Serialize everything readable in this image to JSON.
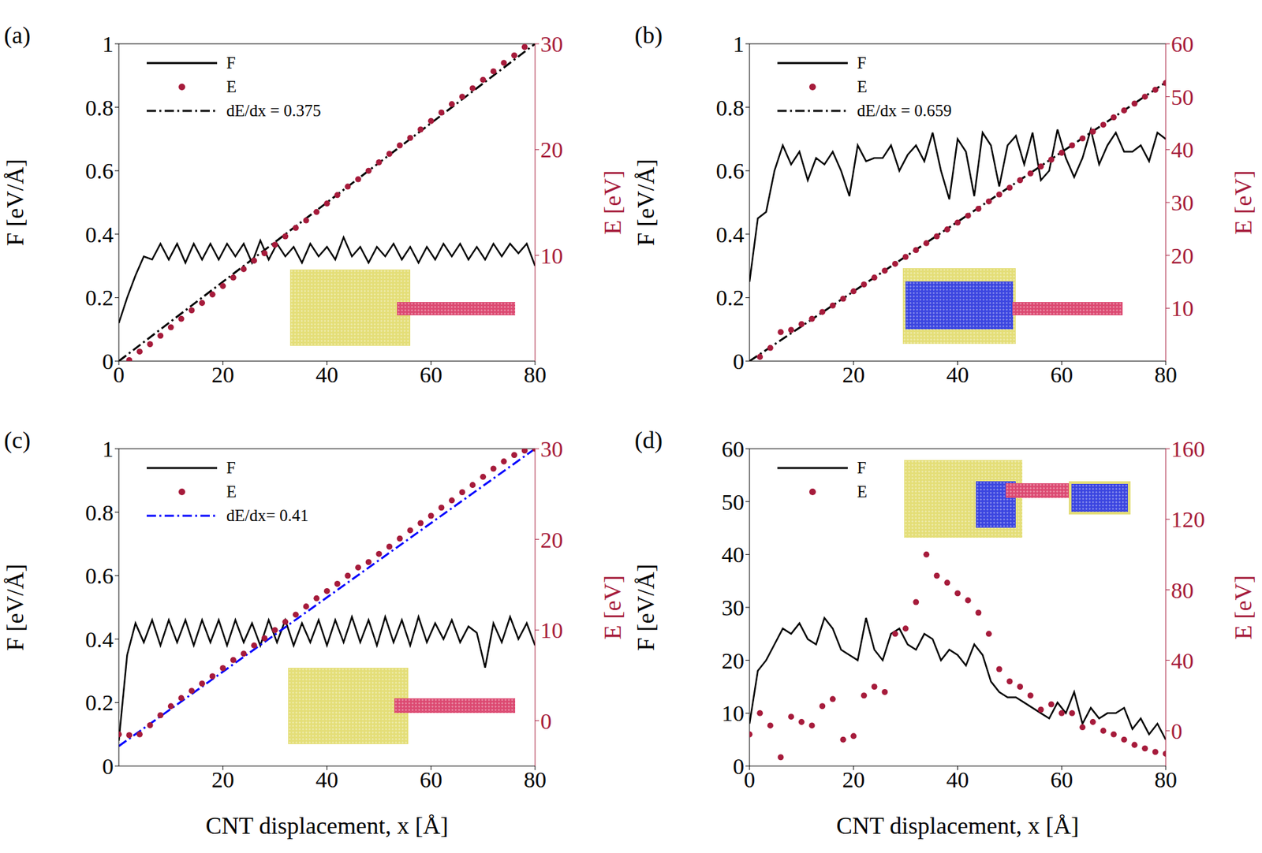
{
  "chart_data": [
    {
      "type": "line",
      "panel_label": "(a)",
      "ylabel": "F [eV/Å]",
      "y2label": "E [eV]",
      "xlim": [
        0,
        80
      ],
      "xticks": [
        0,
        20,
        40,
        60,
        80
      ],
      "ylim": [
        0,
        1
      ],
      "yticks": [
        0,
        0.2,
        0.4,
        0.6,
        0.8,
        1
      ],
      "y2lim": [
        0,
        30
      ],
      "y2ticks": [
        10,
        20,
        30
      ],
      "legend": "upper left",
      "series": [
        {
          "name": "F",
          "type": "line",
          "color": "#000000",
          "line_style": "solid",
          "x": [
            0,
            1.6,
            3.2,
            4.8,
            6.4,
            8,
            9.6,
            11.2,
            12.8,
            14.4,
            16,
            17.6,
            19.2,
            20.8,
            22.4,
            24,
            25.6,
            27.2,
            28.8,
            30.4,
            32,
            33.6,
            35.2,
            36.8,
            38.4,
            40,
            41.6,
            43.2,
            44.8,
            46.4,
            48,
            49.6,
            51.2,
            52.8,
            54.4,
            56,
            57.6,
            59.2,
            60.8,
            62.4,
            64,
            65.6,
            67.2,
            68.8,
            70.4,
            72,
            73.6,
            75.2,
            76.8,
            78.4,
            80
          ],
          "values": [
            0.12,
            0.2,
            0.27,
            0.33,
            0.32,
            0.37,
            0.32,
            0.37,
            0.31,
            0.37,
            0.32,
            0.37,
            0.32,
            0.37,
            0.33,
            0.37,
            0.31,
            0.38,
            0.32,
            0.37,
            0.33,
            0.36,
            0.31,
            0.37,
            0.33,
            0.36,
            0.32,
            0.39,
            0.33,
            0.36,
            0.31,
            0.36,
            0.33,
            0.37,
            0.32,
            0.36,
            0.31,
            0.36,
            0.32,
            0.37,
            0.33,
            0.37,
            0.32,
            0.36,
            0.32,
            0.37,
            0.33,
            0.37,
            0.34,
            0.37,
            0.3
          ]
        },
        {
          "name": "E",
          "type": "scatter",
          "axis": "y2",
          "color": "#a61b3b",
          "marker": "circle",
          "x": [
            2,
            4,
            6,
            8,
            10,
            12,
            14,
            16,
            18,
            20,
            22,
            24,
            26,
            28,
            30,
            32,
            34,
            36,
            38,
            40,
            42,
            44,
            46,
            48,
            50,
            52,
            54,
            56,
            58,
            60,
            62,
            64,
            66,
            68,
            70,
            72,
            74,
            76,
            78
          ],
          "values": [
            0.1,
            0.9,
            1.6,
            2.4,
            3.2,
            4.0,
            4.8,
            5.5,
            6.3,
            7.1,
            7.9,
            8.7,
            9.5,
            10.2,
            11.0,
            11.8,
            12.6,
            13.3,
            14.1,
            14.9,
            15.7,
            16.5,
            17.2,
            18.0,
            18.8,
            19.6,
            20.4,
            21.1,
            21.9,
            22.7,
            23.5,
            24.3,
            25.0,
            25.8,
            26.6,
            27.4,
            28.2,
            28.9,
            29.7
          ]
        },
        {
          "name": "dE/dx = 0.375",
          "type": "line",
          "axis": "y2",
          "color": "#000000",
          "line_style": "dashdot",
          "x": [
            0,
            80
          ],
          "values": [
            0,
            30
          ]
        }
      ]
    },
    {
      "type": "line",
      "panel_label": "(b)",
      "ylabel": "F [eV/Å]",
      "y2label": "E [eV]",
      "xlim": [
        0,
        80
      ],
      "xticks": [
        20,
        40,
        60,
        80
      ],
      "ylim": [
        0,
        1
      ],
      "yticks": [
        0,
        0.2,
        0.4,
        0.6,
        0.8,
        1
      ],
      "y2lim": [
        0,
        60
      ],
      "y2ticks": [
        10,
        20,
        30,
        40,
        50,
        60
      ],
      "legend": "upper left",
      "series": [
        {
          "name": "F",
          "type": "line",
          "color": "#000000",
          "line_style": "solid",
          "x": [
            0,
            1.6,
            3.2,
            4.8,
            6.4,
            8,
            9.6,
            11.2,
            12.8,
            14.4,
            16,
            17.6,
            19.2,
            20.8,
            22.4,
            24,
            25.6,
            27.2,
            28.8,
            30.4,
            32,
            33.6,
            35.2,
            36.8,
            38.4,
            40,
            41.6,
            43.2,
            44.8,
            46.4,
            48,
            49.6,
            51.2,
            52.8,
            54.4,
            56,
            57.6,
            59.2,
            60.8,
            62.4,
            64,
            65.6,
            67.2,
            68.8,
            70.4,
            72,
            73.6,
            75.2,
            76.8,
            78.4,
            80
          ],
          "values": [
            0.25,
            0.45,
            0.47,
            0.6,
            0.68,
            0.62,
            0.66,
            0.57,
            0.64,
            0.62,
            0.66,
            0.6,
            0.52,
            0.68,
            0.63,
            0.64,
            0.64,
            0.68,
            0.6,
            0.65,
            0.68,
            0.63,
            0.72,
            0.6,
            0.51,
            0.7,
            0.66,
            0.52,
            0.72,
            0.68,
            0.55,
            0.68,
            0.71,
            0.62,
            0.72,
            0.57,
            0.6,
            0.73,
            0.64,
            0.58,
            0.64,
            0.73,
            0.62,
            0.68,
            0.72,
            0.66,
            0.66,
            0.68,
            0.63,
            0.72,
            0.7
          ]
        },
        {
          "name": "E",
          "type": "scatter",
          "axis": "y2",
          "color": "#a61b3b",
          "marker": "circle",
          "x": [
            2,
            4,
            6,
            8,
            10,
            12,
            14,
            16,
            18,
            20,
            22,
            24,
            26,
            28,
            30,
            32,
            34,
            36,
            38,
            40,
            42,
            44,
            46,
            48,
            50,
            52,
            54,
            56,
            58,
            60,
            62,
            64,
            66,
            68,
            70,
            72,
            74,
            76,
            78,
            80
          ],
          "values": [
            0.8,
            2.5,
            5.5,
            5.9,
            7.0,
            8.0,
            9.3,
            10.5,
            11.8,
            13.2,
            14.5,
            15.8,
            17.1,
            18.4,
            19.7,
            21.0,
            22.3,
            23.6,
            24.9,
            26.2,
            27.5,
            28.8,
            30.2,
            31.5,
            32.8,
            34.2,
            35.5,
            36.8,
            38.1,
            39.4,
            40.8,
            42.1,
            43.4,
            44.7,
            46.1,
            47.4,
            48.7,
            50.0,
            51.3,
            52.6
          ]
        },
        {
          "name": "dE/dx = 0.659",
          "type": "line",
          "axis": "y2",
          "color": "#000000",
          "line_style": "dashdot",
          "x": [
            0,
            80
          ],
          "values": [
            0,
            52.7
          ]
        }
      ]
    },
    {
      "type": "line",
      "panel_label": "(c)",
      "xlabel": "CNT displacement, x [Å]",
      "ylabel": "F [eV/Å]",
      "y2label": "E [eV]",
      "xlim": [
        0,
        80
      ],
      "xticks": [
        20,
        40,
        60,
        80
      ],
      "ylim": [
        0,
        1
      ],
      "yticks": [
        0,
        0.2,
        0.4,
        0.6,
        0.8,
        1
      ],
      "y2lim": [
        -5,
        30
      ],
      "y2ticks": [
        0,
        10,
        20,
        30
      ],
      "legend": "upper left",
      "series": [
        {
          "name": "F",
          "type": "line",
          "color": "#000000",
          "line_style": "solid",
          "x": [
            0,
            1.6,
            3.2,
            4.8,
            6.4,
            8,
            9.6,
            11.2,
            12.8,
            14.4,
            16,
            17.6,
            19.2,
            20.8,
            22.4,
            24,
            25.6,
            27.2,
            28.8,
            30.4,
            32,
            33.6,
            35.2,
            36.8,
            38.4,
            40,
            41.6,
            43.2,
            44.8,
            46.4,
            48,
            49.6,
            51.2,
            52.8,
            54.4,
            56,
            57.6,
            59.2,
            60.8,
            62.4,
            64,
            65.6,
            67.2,
            68.8,
            70.4,
            72,
            73.6,
            75.2,
            76.8,
            78.4,
            80
          ],
          "values": [
            0.08,
            0.35,
            0.45,
            0.39,
            0.46,
            0.38,
            0.46,
            0.39,
            0.46,
            0.38,
            0.46,
            0.39,
            0.46,
            0.38,
            0.46,
            0.39,
            0.45,
            0.38,
            0.46,
            0.39,
            0.46,
            0.38,
            0.45,
            0.39,
            0.46,
            0.38,
            0.46,
            0.39,
            0.47,
            0.39,
            0.46,
            0.38,
            0.47,
            0.39,
            0.46,
            0.38,
            0.47,
            0.39,
            0.45,
            0.4,
            0.46,
            0.39,
            0.44,
            0.42,
            0.31,
            0.45,
            0.39,
            0.47,
            0.4,
            0.45,
            0.38
          ]
        },
        {
          "name": "E",
          "type": "scatter",
          "axis": "y2",
          "color": "#a61b3b",
          "marker": "circle",
          "x": [
            0,
            2,
            4,
            6,
            8,
            10,
            12,
            14,
            16,
            18,
            20,
            22,
            24,
            26,
            28,
            30,
            32,
            34,
            36,
            38,
            40,
            42,
            44,
            46,
            48,
            50,
            52,
            54,
            56,
            58,
            60,
            62,
            64,
            66,
            68,
            70,
            72,
            74,
            76,
            78,
            80
          ],
          "values": [
            -1.5,
            -1.6,
            -1.5,
            -0.5,
            0.6,
            1.6,
            2.5,
            3.3,
            4.1,
            4.9,
            5.8,
            6.7,
            7.4,
            8.3,
            9.1,
            10.0,
            10.9,
            11.7,
            12.6,
            13.5,
            14.3,
            15.1,
            16.0,
            16.9,
            17.5,
            18.4,
            19.2,
            20.1,
            21.0,
            21.8,
            22.6,
            23.5,
            24.3,
            25.2,
            26.0,
            26.9,
            27.8,
            28.6,
            29.3,
            29.8,
            30.0
          ]
        },
        {
          "name": "dE/dx= 0.41",
          "type": "line",
          "axis": "y2",
          "color": "#0000ff",
          "line_style": "dashdot",
          "x": [
            0,
            80
          ],
          "values": [
            -2.8,
            30
          ]
        }
      ]
    },
    {
      "type": "line",
      "panel_label": "(d)",
      "xlabel": "CNT displacement, x [Å]",
      "ylabel": "F [eV/Å]",
      "y2label": "E [eV]",
      "xlim": [
        0,
        80
      ],
      "xticks": [
        0,
        20,
        40,
        60,
        80
      ],
      "ylim": [
        0,
        60
      ],
      "yticks": [
        0,
        10,
        20,
        30,
        40,
        50,
        60
      ],
      "y2lim": [
        -20,
        160
      ],
      "y2ticks": [
        0,
        40,
        80,
        120,
        160
      ],
      "legend": "upper left",
      "series": [
        {
          "name": "F",
          "type": "line",
          "color": "#000000",
          "line_style": "solid",
          "x": [
            0,
            1.6,
            3.2,
            4.8,
            6.4,
            8,
            9.6,
            11.2,
            12.8,
            14.4,
            16,
            17.6,
            19.2,
            20.8,
            22.4,
            24,
            25.6,
            27.2,
            28.8,
            30.4,
            32,
            33.6,
            35.2,
            36.8,
            38.4,
            40,
            41.6,
            43.2,
            44.8,
            46.4,
            48,
            49.6,
            51.2,
            52.8,
            54.4,
            56,
            57.6,
            59.2,
            60.8,
            62.4,
            64,
            65.6,
            67.2,
            68.8,
            70.4,
            72,
            73.6,
            75.2,
            76.8,
            78.4,
            80
          ],
          "values": [
            8,
            18,
            20,
            23,
            26,
            25,
            27,
            24,
            23,
            28,
            26,
            22,
            21,
            20,
            28,
            22,
            20,
            25,
            26,
            23,
            22,
            25,
            24,
            20,
            22,
            21,
            19,
            23,
            21,
            16,
            14,
            13,
            13,
            12,
            11,
            10,
            9,
            12,
            10,
            14,
            8,
            11,
            9,
            10,
            10,
            11,
            7,
            9,
            6,
            8,
            5
          ]
        },
        {
          "name": "E",
          "type": "scatter",
          "axis": "y2",
          "color": "#a61b3b",
          "marker": "circle",
          "x": [
            0,
            2,
            4,
            6,
            8,
            10,
            12,
            14,
            16,
            18,
            20,
            22,
            24,
            26,
            28,
            30,
            32,
            34,
            36,
            38,
            40,
            42,
            44,
            46,
            48,
            50,
            52,
            54,
            56,
            58,
            60,
            62,
            64,
            66,
            68,
            70,
            72,
            74,
            76,
            78,
            80
          ],
          "values": [
            -2,
            10,
            3,
            -15,
            8,
            5,
            3,
            14,
            18,
            -5,
            -3,
            20,
            25,
            22,
            55,
            58,
            73,
            100,
            88,
            84,
            78,
            74,
            67,
            55,
            35,
            28,
            25,
            20,
            12,
            15,
            10,
            10,
            2,
            5,
            0,
            -2,
            -5,
            -8,
            -10,
            -12,
            -13
          ]
        }
      ]
    }
  ]
}
